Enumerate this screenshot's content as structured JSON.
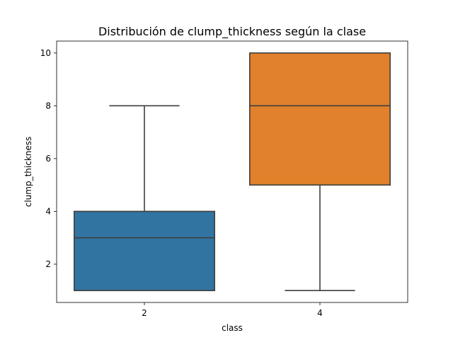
{
  "chart_data": {
    "type": "box",
    "title": "Distribución de clump_thickness según la clase",
    "xlabel": "class",
    "ylabel": "clump_thickness",
    "categories": [
      "2",
      "4"
    ],
    "ylim": [
      0.55,
      10.45
    ],
    "yticks": [
      2,
      4,
      6,
      8,
      10
    ],
    "grid": false,
    "legend": "none",
    "boxes": [
      {
        "category": "2",
        "whisker_low": 1,
        "q1": 1,
        "median": 3,
        "q3": 4,
        "whisker_high": 8,
        "color": "#3274a1"
      },
      {
        "category": "4",
        "whisker_low": 1,
        "q1": 5,
        "median": 8,
        "q3": 10,
        "whisker_high": 10,
        "color": "#e1812c"
      }
    ]
  }
}
